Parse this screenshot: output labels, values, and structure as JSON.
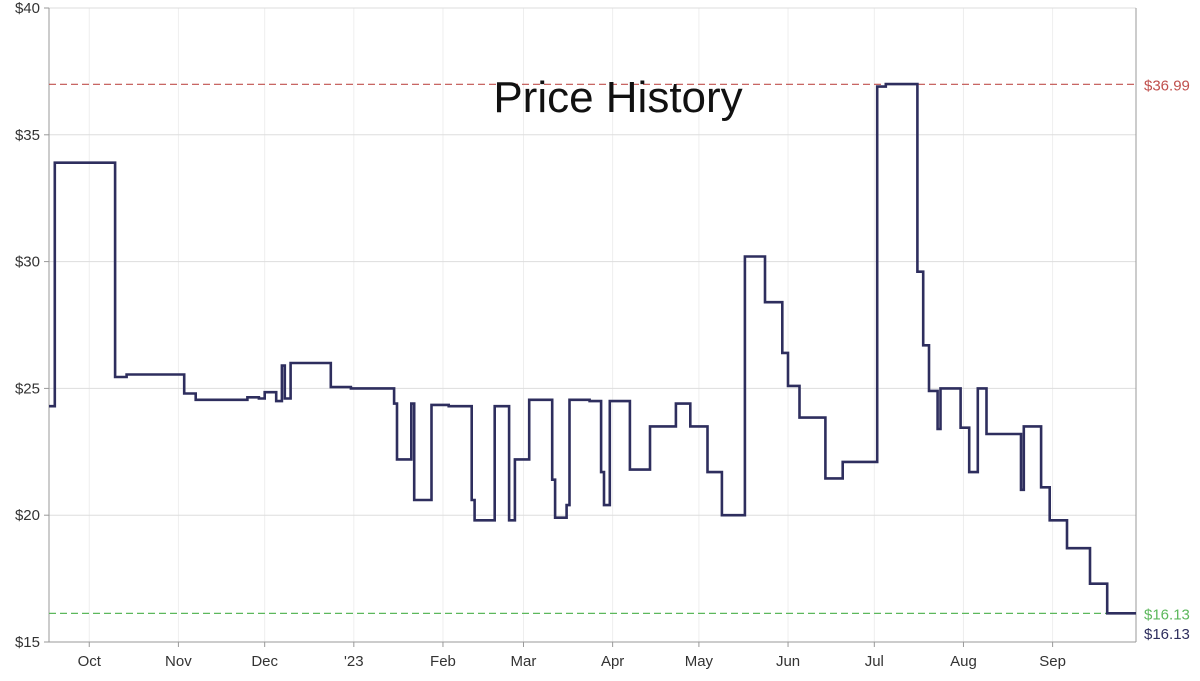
{
  "chart_data": {
    "type": "line",
    "title": "Price History",
    "xlabel": "",
    "ylabel": "",
    "ylim": [
      15,
      40
    ],
    "xlim": [
      "2022-09-17",
      "2023-09-30"
    ],
    "grid": true,
    "line_style": "step",
    "y_ticks": [
      {
        "value": 15,
        "label": "$15"
      },
      {
        "value": 20,
        "label": "$20"
      },
      {
        "value": 25,
        "label": "$25"
      },
      {
        "value": 30,
        "label": "$30"
      },
      {
        "value": 35,
        "label": "$35"
      },
      {
        "value": 40,
        "label": "$40"
      }
    ],
    "x_ticks": [
      {
        "date": "2022-10-01",
        "label": "Oct"
      },
      {
        "date": "2022-11-01",
        "label": "Nov"
      },
      {
        "date": "2022-12-01",
        "label": "Dec"
      },
      {
        "date": "2023-01-01",
        "label": "'23"
      },
      {
        "date": "2023-02-01",
        "label": "Feb"
      },
      {
        "date": "2023-03-01",
        "label": "Mar"
      },
      {
        "date": "2023-04-01",
        "label": "Apr"
      },
      {
        "date": "2023-05-01",
        "label": "May"
      },
      {
        "date": "2023-06-01",
        "label": "Jun"
      },
      {
        "date": "2023-07-01",
        "label": "Jul"
      },
      {
        "date": "2023-08-01",
        "label": "Aug"
      },
      {
        "date": "2023-09-01",
        "label": "Sep"
      }
    ],
    "reference_lines": [
      {
        "name": "highest",
        "value": 36.99,
        "label": "$36.99",
        "color": "#c0504d"
      },
      {
        "name": "lowest",
        "value": 16.13,
        "label": "$16.13",
        "color": "#5cb85c"
      }
    ],
    "current_price_label": "$16.13",
    "series": [
      {
        "color": "#2e2e5e",
        "points": [
          [
            "2022-09-17",
            24.3
          ],
          [
            "2022-09-19",
            33.9
          ],
          [
            "2022-10-10",
            25.45
          ],
          [
            "2022-10-14",
            25.55
          ],
          [
            "2022-11-03",
            24.8
          ],
          [
            "2022-11-07",
            24.55
          ],
          [
            "2022-11-25",
            24.65
          ],
          [
            "2022-11-29",
            24.6
          ],
          [
            "2022-12-01",
            24.55
          ],
          [
            "2022-12-01",
            24.85
          ],
          [
            "2022-12-05",
            24.5
          ],
          [
            "2022-12-07",
            25.9
          ],
          [
            "2022-12-08",
            24.6
          ],
          [
            "2022-12-10",
            26.0
          ],
          [
            "2022-12-24",
            25.05
          ],
          [
            "2022-12-31",
            25.0
          ],
          [
            "2023-01-15",
            24.4
          ],
          [
            "2023-01-16",
            22.2
          ],
          [
            "2023-01-21",
            24.4
          ],
          [
            "2023-01-22",
            20.6
          ],
          [
            "2023-01-28",
            24.35
          ],
          [
            "2023-02-03",
            24.3
          ],
          [
            "2023-02-11",
            20.6
          ],
          [
            "2023-02-12",
            19.8
          ],
          [
            "2023-02-19",
            24.3
          ],
          [
            "2023-02-24",
            19.8
          ],
          [
            "2023-02-26",
            22.2
          ],
          [
            "2023-03-03",
            24.55
          ],
          [
            "2023-03-11",
            21.4
          ],
          [
            "2023-03-12",
            19.9
          ],
          [
            "2023-03-16",
            20.4
          ],
          [
            "2023-03-17",
            24.55
          ],
          [
            "2023-03-24",
            24.5
          ],
          [
            "2023-03-28",
            21.7
          ],
          [
            "2023-03-29",
            20.4
          ],
          [
            "2023-03-31",
            24.5
          ],
          [
            "2023-04-07",
            21.8
          ],
          [
            "2023-04-14",
            23.5
          ],
          [
            "2023-04-23",
            24.4
          ],
          [
            "2023-04-28",
            23.5
          ],
          [
            "2023-05-04",
            21.7
          ],
          [
            "2023-05-09",
            20.0
          ],
          [
            "2023-05-17",
            30.2
          ],
          [
            "2023-05-24",
            28.4
          ],
          [
            "2023-05-30",
            26.4
          ],
          [
            "2023-06-01",
            25.1
          ],
          [
            "2023-06-05",
            23.85
          ],
          [
            "2023-06-14",
            21.45
          ],
          [
            "2023-06-20",
            22.1
          ],
          [
            "2023-07-02",
            36.9
          ],
          [
            "2023-07-05",
            37.0
          ],
          [
            "2023-07-16",
            29.6
          ],
          [
            "2023-07-18",
            26.7
          ],
          [
            "2023-07-20",
            24.9
          ],
          [
            "2023-07-23",
            23.4
          ],
          [
            "2023-07-24",
            25.0
          ],
          [
            "2023-07-31",
            23.45
          ],
          [
            "2023-08-03",
            21.7
          ],
          [
            "2023-08-06",
            25.0
          ],
          [
            "2023-08-09",
            23.2
          ],
          [
            "2023-08-20",
            23.2
          ],
          [
            "2023-08-21",
            21.0
          ],
          [
            "2023-08-22",
            23.5
          ],
          [
            "2023-08-28",
            21.1
          ],
          [
            "2023-08-31",
            19.8
          ],
          [
            "2023-09-06",
            18.7
          ],
          [
            "2023-09-14",
            17.3
          ],
          [
            "2023-09-20",
            16.13
          ],
          [
            "2023-09-30",
            16.13
          ]
        ]
      }
    ]
  }
}
